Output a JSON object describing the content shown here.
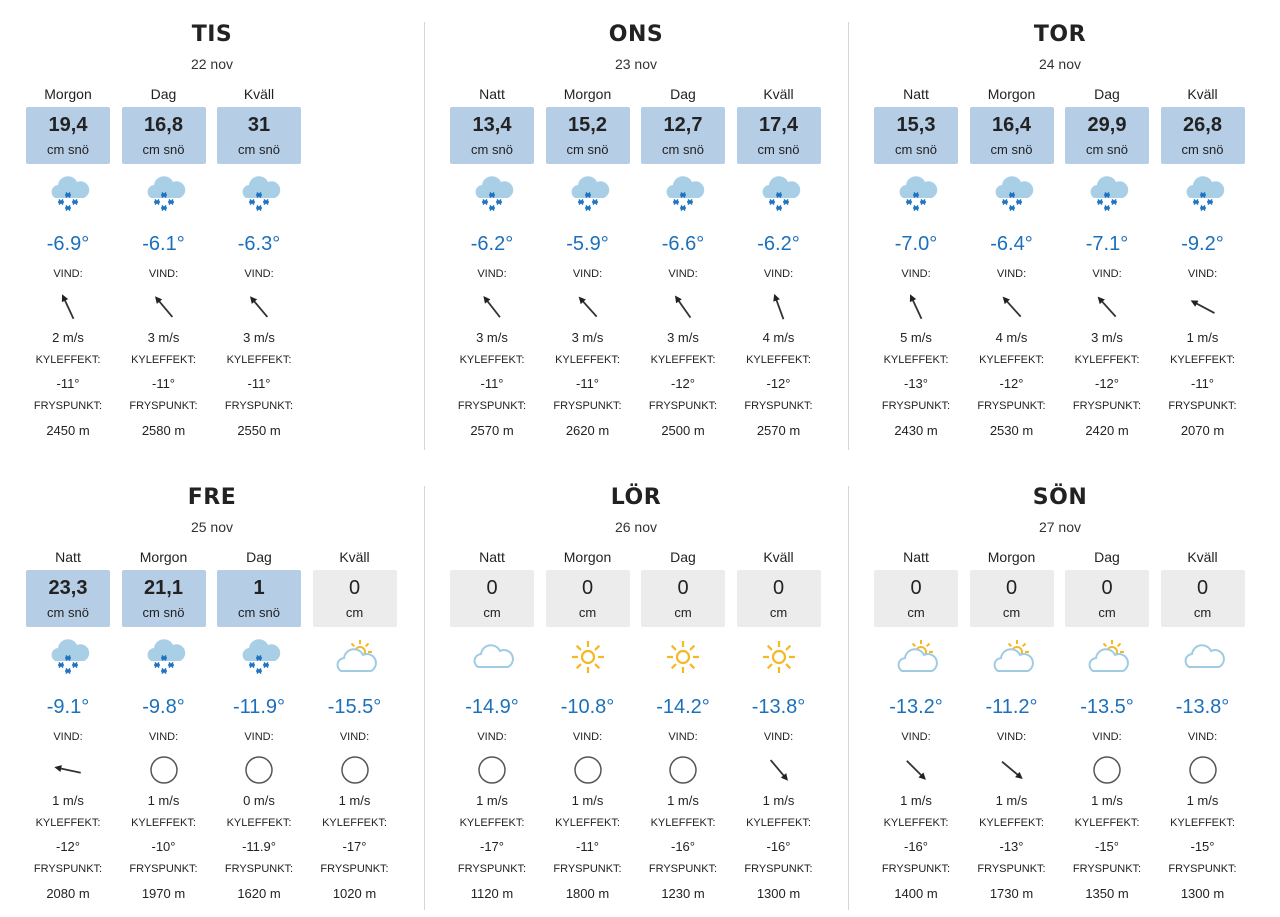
{
  "colors": {
    "snow_box": "#b6cde6",
    "empty_box": "#ececec",
    "temperature": "#1c70bb"
  },
  "labels": {
    "wind": "VIND:",
    "windchill": "KYLEFFEKT:",
    "freezing": "FRYSPUNKT:"
  },
  "days": [
    {
      "name": "TIS",
      "date": "22 nov",
      "periods": [
        {
          "label": "Morgon",
          "amount": "19,4",
          "unit": "cm snö",
          "snow": true,
          "icon": "snow-cloud",
          "temp": "-6.9°",
          "wind_speed": "2 m/s",
          "wind_dir": 335,
          "calm": false,
          "windchill": "-11°",
          "freezing": "2450 m"
        },
        {
          "label": "Dag",
          "amount": "16,8",
          "unit": "cm snö",
          "snow": true,
          "icon": "snow-cloud",
          "temp": "-6.1°",
          "wind_speed": "3 m/s",
          "wind_dir": 320,
          "calm": false,
          "windchill": "-11°",
          "freezing": "2580 m"
        },
        {
          "label": "Kväll",
          "amount": "31",
          "unit": "cm snö",
          "snow": true,
          "icon": "snow-cloud",
          "temp": "-6.3°",
          "wind_speed": "3 m/s",
          "wind_dir": 320,
          "calm": false,
          "windchill": "-11°",
          "freezing": "2550 m"
        }
      ]
    },
    {
      "name": "ONS",
      "date": "23 nov",
      "periods": [
        {
          "label": "Natt",
          "amount": "13,4",
          "unit": "cm snö",
          "snow": true,
          "icon": "snow-cloud",
          "temp": "-6.2°",
          "wind_speed": "3 m/s",
          "wind_dir": 322,
          "calm": false,
          "windchill": "-11°",
          "freezing": "2570 m"
        },
        {
          "label": "Morgon",
          "amount": "15,2",
          "unit": "cm snö",
          "snow": true,
          "icon": "snow-cloud",
          "temp": "-5.9°",
          "wind_speed": "3 m/s",
          "wind_dir": 318,
          "calm": false,
          "windchill": "-11°",
          "freezing": "2620 m"
        },
        {
          "label": "Dag",
          "amount": "12,7",
          "unit": "cm snö",
          "snow": true,
          "icon": "snow-cloud",
          "temp": "-6.6°",
          "wind_speed": "3 m/s",
          "wind_dir": 325,
          "calm": false,
          "windchill": "-12°",
          "freezing": "2500 m"
        },
        {
          "label": "Kväll",
          "amount": "17,4",
          "unit": "cm snö",
          "snow": true,
          "icon": "snow-cloud",
          "temp": "-6.2°",
          "wind_speed": "4 m/s",
          "wind_dir": 340,
          "calm": false,
          "windchill": "-12°",
          "freezing": "2570 m"
        }
      ]
    },
    {
      "name": "TOR",
      "date": "24 nov",
      "periods": [
        {
          "label": "Natt",
          "amount": "15,3",
          "unit": "cm snö",
          "snow": true,
          "icon": "snow-cloud",
          "temp": "-7.0°",
          "wind_speed": "5 m/s",
          "wind_dir": 335,
          "calm": false,
          "windchill": "-13°",
          "freezing": "2430 m"
        },
        {
          "label": "Morgon",
          "amount": "16,4",
          "unit": "cm snö",
          "snow": true,
          "icon": "snow-cloud",
          "temp": "-6.4°",
          "wind_speed": "4 m/s",
          "wind_dir": 318,
          "calm": false,
          "windchill": "-12°",
          "freezing": "2530 m"
        },
        {
          "label": "Dag",
          "amount": "29,9",
          "unit": "cm snö",
          "snow": true,
          "icon": "snow-cloud",
          "temp": "-7.1°",
          "wind_speed": "3 m/s",
          "wind_dir": 318,
          "calm": false,
          "windchill": "-12°",
          "freezing": "2420 m"
        },
        {
          "label": "Kväll",
          "amount": "26,8",
          "unit": "cm snö",
          "snow": true,
          "icon": "snow-cloud",
          "temp": "-9.2°",
          "wind_speed": "1 m/s",
          "wind_dir": 298,
          "calm": false,
          "windchill": "-11°",
          "freezing": "2070 m"
        }
      ]
    },
    {
      "name": "FRE",
      "date": "25 nov",
      "periods": [
        {
          "label": "Natt",
          "amount": "23,3",
          "unit": "cm snö",
          "snow": true,
          "icon": "snow-cloud",
          "temp": "-9.1°",
          "wind_speed": "1 m/s",
          "wind_dir": 282,
          "calm": false,
          "windchill": "-12°",
          "freezing": "2080 m"
        },
        {
          "label": "Morgon",
          "amount": "21,1",
          "unit": "cm snö",
          "snow": true,
          "icon": "snow-cloud",
          "temp": "-9.8°",
          "wind_speed": "1 m/s",
          "wind_dir": 0,
          "calm": true,
          "windchill": "-10°",
          "freezing": "1970 m"
        },
        {
          "label": "Dag",
          "amount": "1",
          "unit": "cm snö",
          "snow": true,
          "icon": "snow-cloud",
          "temp": "-11.9°",
          "wind_speed": "0 m/s",
          "wind_dir": 0,
          "calm": true,
          "windchill": "-11.9°",
          "freezing": "1620 m"
        },
        {
          "label": "Kväll",
          "amount": "0",
          "unit": "cm",
          "snow": false,
          "icon": "partly-cloudy",
          "temp": "-15.5°",
          "wind_speed": "1 m/s",
          "wind_dir": 0,
          "calm": true,
          "windchill": "-17°",
          "freezing": "1020 m"
        }
      ]
    },
    {
      "name": "LÖR",
      "date": "26 nov",
      "periods": [
        {
          "label": "Natt",
          "amount": "0",
          "unit": "cm",
          "snow": false,
          "icon": "cloud",
          "temp": "-14.9°",
          "wind_speed": "1 m/s",
          "wind_dir": 0,
          "calm": true,
          "windchill": "-17°",
          "freezing": "1120 m"
        },
        {
          "label": "Morgon",
          "amount": "0",
          "unit": "cm",
          "snow": false,
          "icon": "sun",
          "temp": "-10.8°",
          "wind_speed": "1 m/s",
          "wind_dir": 0,
          "calm": true,
          "windchill": "-11°",
          "freezing": "1800 m"
        },
        {
          "label": "Dag",
          "amount": "0",
          "unit": "cm",
          "snow": false,
          "icon": "sun",
          "temp": "-14.2°",
          "wind_speed": "1 m/s",
          "wind_dir": 0,
          "calm": true,
          "windchill": "-16°",
          "freezing": "1230 m"
        },
        {
          "label": "Kväll",
          "amount": "0",
          "unit": "cm",
          "snow": false,
          "icon": "sun",
          "temp": "-13.8°",
          "wind_speed": "1 m/s",
          "wind_dir": 140,
          "calm": false,
          "windchill": "-16°",
          "freezing": "1300 m"
        }
      ]
    },
    {
      "name": "SÖN",
      "date": "27 nov",
      "periods": [
        {
          "label": "Natt",
          "amount": "0",
          "unit": "cm",
          "snow": false,
          "icon": "partly-cloudy",
          "temp": "-13.2°",
          "wind_speed": "1 m/s",
          "wind_dir": 135,
          "calm": false,
          "windchill": "-16°",
          "freezing": "1400 m"
        },
        {
          "label": "Morgon",
          "amount": "0",
          "unit": "cm",
          "snow": false,
          "icon": "partly-cloudy",
          "temp": "-11.2°",
          "wind_speed": "1 m/s",
          "wind_dir": 130,
          "calm": false,
          "windchill": "-13°",
          "freezing": "1730 m"
        },
        {
          "label": "Dag",
          "amount": "0",
          "unit": "cm",
          "snow": false,
          "icon": "partly-cloudy",
          "temp": "-13.5°",
          "wind_speed": "1 m/s",
          "wind_dir": 0,
          "calm": true,
          "windchill": "-15°",
          "freezing": "1350 m"
        },
        {
          "label": "Kväll",
          "amount": "0",
          "unit": "cm",
          "snow": false,
          "icon": "cloud",
          "temp": "-13.8°",
          "wind_speed": "1 m/s",
          "wind_dir": 0,
          "calm": true,
          "windchill": "-15°",
          "freezing": "1300 m"
        }
      ]
    }
  ]
}
